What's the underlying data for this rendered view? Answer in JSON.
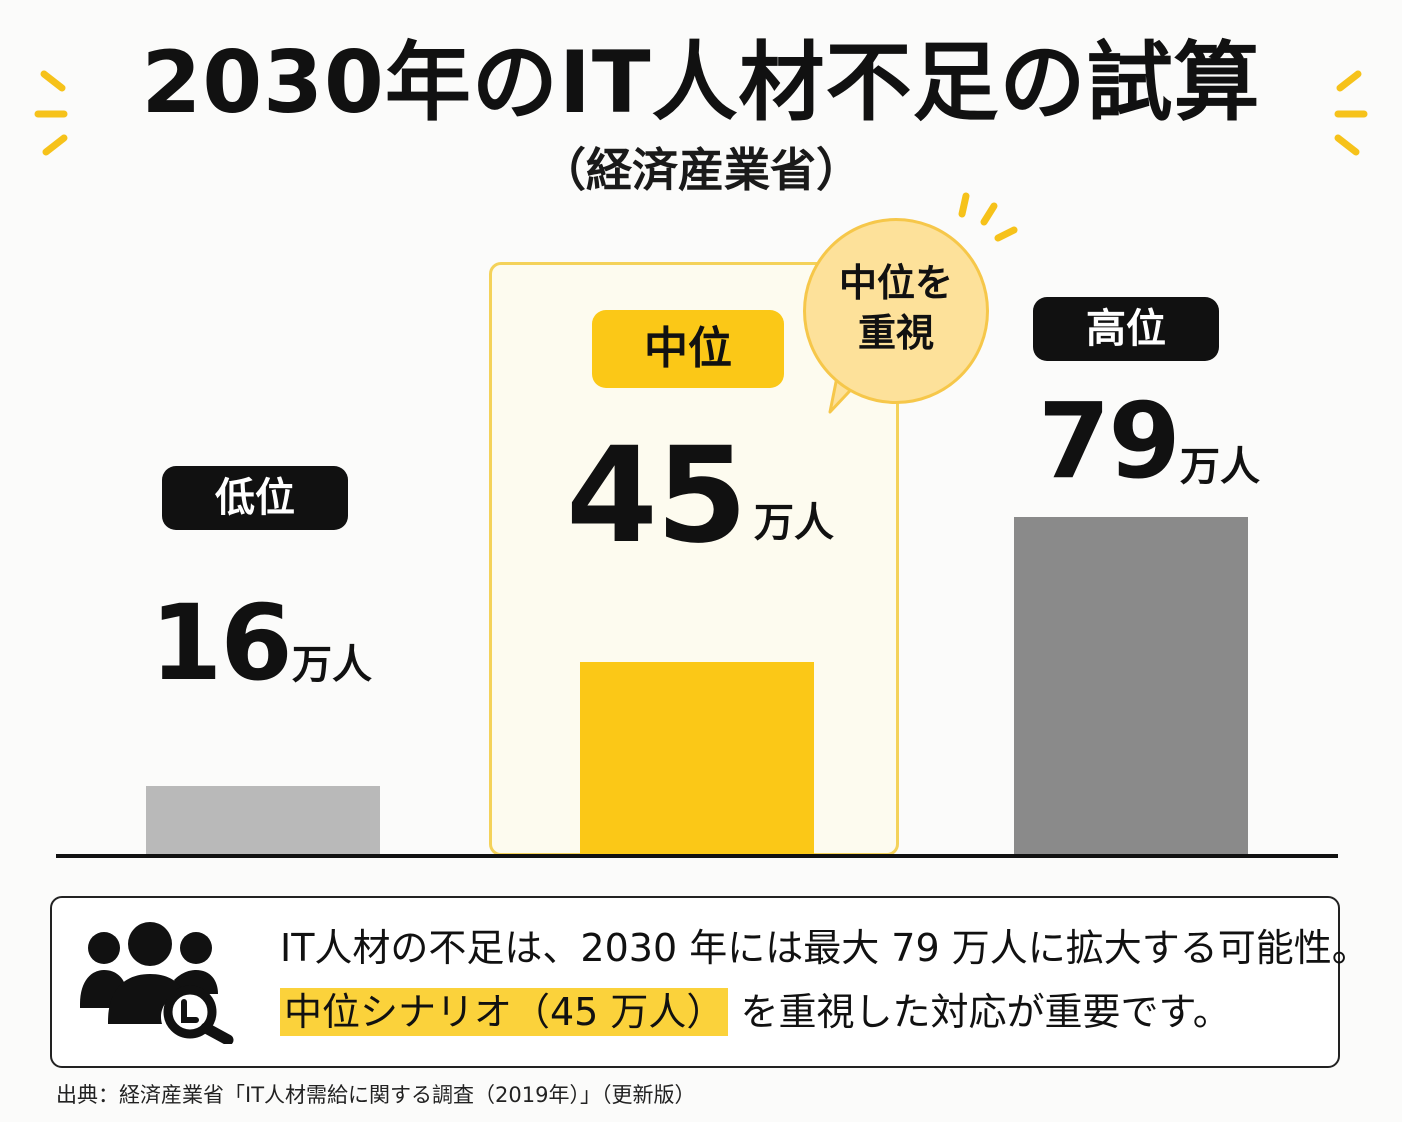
{
  "title": "2030年のIT人材不足の試算",
  "subtitle": "（経済産業省）",
  "colors": {
    "accent_yellow": "#fbc817",
    "bar_low": "#b9b9b9",
    "bar_mid": "#fbc817",
    "bar_high": "#8a8a8a",
    "tag_dark": "#111111"
  },
  "bubble": {
    "line1": "中位を",
    "line2": "重視"
  },
  "chart_data": {
    "type": "bar",
    "categories": [
      "低位",
      "中位",
      "高位"
    ],
    "values": [
      16,
      45,
      79
    ],
    "unit": "万人",
    "value_labels": [
      "16",
      "45",
      "79"
    ],
    "highlighted_category": "中位",
    "ylim": [
      0,
      100
    ],
    "grid": false,
    "xlabel": "",
    "ylabel": ""
  },
  "note": {
    "icon": "people-search-icon",
    "line1": "IT人材の不足は、2030 年には最大 79 万人に拡大する可能性。",
    "line2_highlight": "中位シナリオ（45 万人）",
    "line2_rest": "を重視した対応が重要です。"
  },
  "source": "出典：経済産業省「IT人材需給に関する調査（2019年）」（更新版）"
}
